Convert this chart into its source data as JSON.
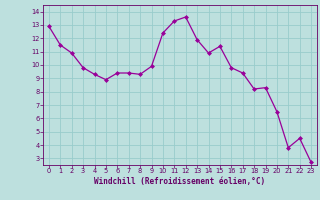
{
  "x": [
    0,
    1,
    2,
    3,
    4,
    5,
    6,
    7,
    8,
    9,
    10,
    11,
    12,
    13,
    14,
    15,
    16,
    17,
    18,
    19,
    20,
    21,
    22,
    23
  ],
  "y": [
    12.9,
    11.5,
    10.9,
    9.8,
    9.3,
    8.9,
    9.4,
    9.4,
    9.3,
    9.9,
    12.4,
    13.3,
    13.6,
    11.9,
    10.9,
    11.4,
    9.8,
    9.4,
    8.2,
    8.3,
    6.5,
    3.8,
    4.5,
    2.7
  ],
  "line_color": "#990099",
  "marker_color": "#990099",
  "bg_color": "#bde0de",
  "grid_color": "#99cccc",
  "xlabel": "Windchill (Refroidissement éolien,°C)",
  "xlim": [
    -0.5,
    23.5
  ],
  "ylim": [
    2.5,
    14.5
  ],
  "yticks": [
    3,
    4,
    5,
    6,
    7,
    8,
    9,
    10,
    11,
    12,
    13,
    14
  ],
  "xticks": [
    0,
    1,
    2,
    3,
    4,
    5,
    6,
    7,
    8,
    9,
    10,
    11,
    12,
    13,
    14,
    15,
    16,
    17,
    18,
    19,
    20,
    21,
    22,
    23
  ],
  "xlabel_color": "#660066",
  "tick_color": "#660066",
  "spine_color": "#660066"
}
